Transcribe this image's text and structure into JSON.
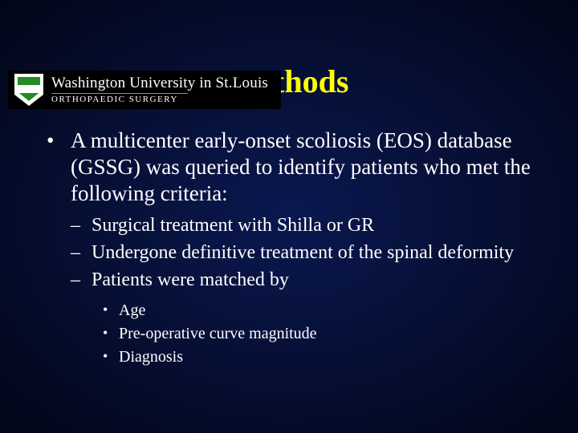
{
  "logo": {
    "line1": "Washington University in St.Louis",
    "line2": "ORTHOPAEDIC SURGERY"
  },
  "title": "Methods",
  "bullets": {
    "lvl1": [
      {
        "text": "A multicenter early-onset scoliosis (EOS) database (GSSG) was queried to identify patients who met the following criteria:",
        "lvl2": [
          {
            "text": "Surgical treatment with Shilla or GR"
          },
          {
            "text": "Undergone definitive treatment of the spinal deformity"
          },
          {
            "text": "Patients were matched by",
            "lvl3": [
              {
                "text": "Age"
              },
              {
                "text": "Pre-operative curve magnitude"
              },
              {
                "text": "Diagnosis"
              }
            ]
          }
        ]
      }
    ]
  },
  "colors": {
    "title": "#ffff00",
    "body_text": "#ffffff",
    "bg_center": "#0a1850",
    "bg_edge": "#020618",
    "banner_bg": "#000000"
  },
  "fonts": {
    "title_size_pt": 30,
    "lvl1_size_pt": 20,
    "lvl2_size_pt": 18,
    "lvl3_size_pt": 15,
    "family": "Times New Roman"
  }
}
